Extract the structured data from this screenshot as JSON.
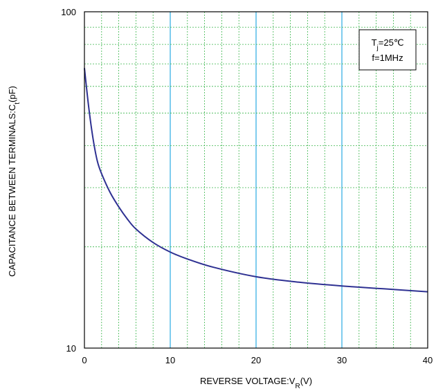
{
  "chart_data": {
    "type": "line",
    "xlabel": "REVERSE VOLTAGE:V",
    "xlabel_sub": "R",
    "xlabel_suffix": "(V)",
    "ylabel": "CAPACITANCE BETWEEN TERMINALS:C",
    "ylabel_sub": "t",
    "ylabel_suffix": "(pF)",
    "xlim": [
      0,
      40
    ],
    "ylim": [
      10,
      100
    ],
    "yscale": "log",
    "x_ticks": [
      0,
      10,
      20,
      30,
      40
    ],
    "y_ticks": [
      10,
      100
    ],
    "grid": true,
    "annotation": {
      "line1_prefix": "T",
      "line1_sub": "j",
      "line1_suffix": "=25℃",
      "line2": "f=1MHz",
      "placement": "top-right"
    },
    "series": [
      {
        "color": "#2e3192",
        "x": [
          0,
          0.5,
          1,
          1.5,
          2,
          3,
          4,
          5,
          6,
          8,
          10,
          12,
          15,
          20,
          25,
          30,
          35,
          40
        ],
        "y": [
          68,
          52,
          42,
          36,
          33,
          29,
          26.3,
          24.2,
          22.6,
          20.6,
          19.3,
          18.4,
          17.4,
          16.3,
          15.7,
          15.3,
          15.0,
          14.7
        ]
      }
    ]
  },
  "colors": {
    "major_grid_x": "#29abe2",
    "minor_grid": "#39b54a",
    "axis": "#000000"
  }
}
